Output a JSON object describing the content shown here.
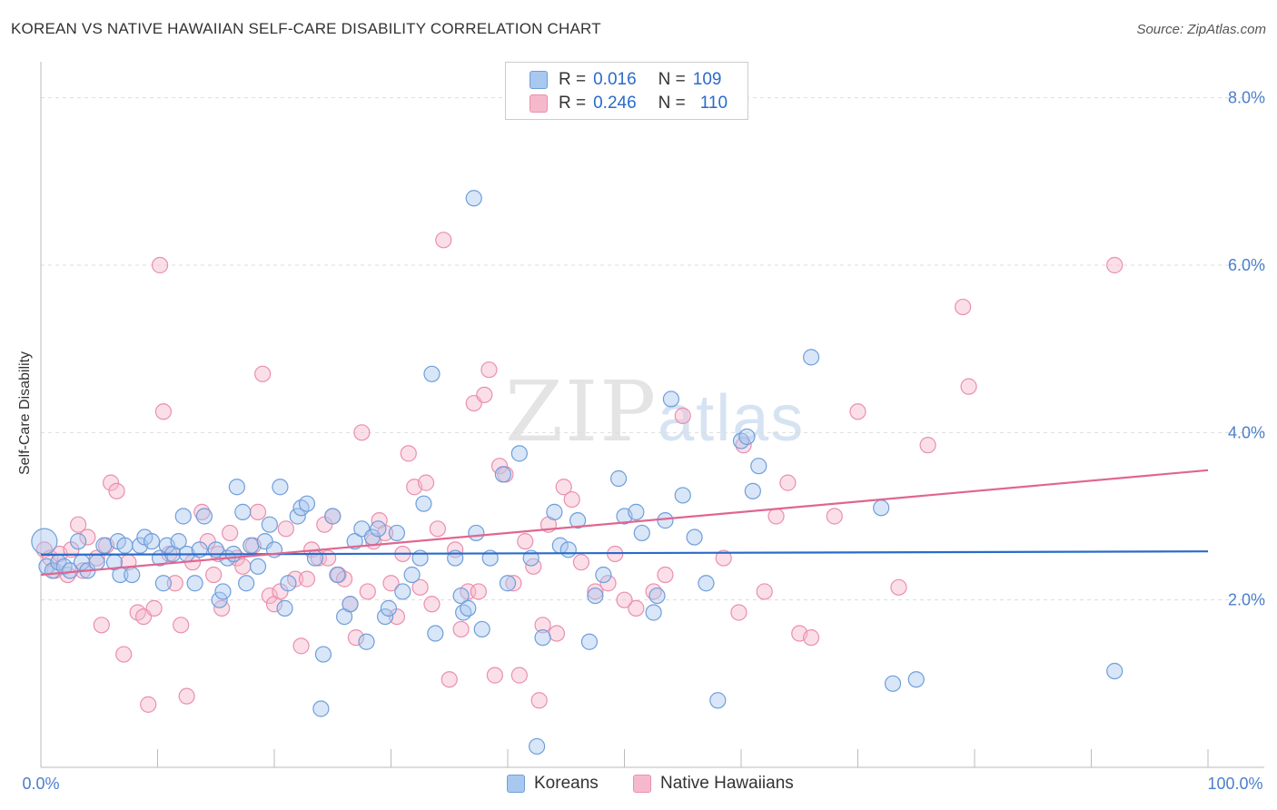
{
  "title": "KOREAN VS NATIVE HAWAIIAN SELF-CARE DISABILITY CORRELATION CHART",
  "source": "Source: ZipAtlas.com",
  "watermark": {
    "main": "ZIP",
    "sub": "atlas"
  },
  "legend": {
    "rows": [
      {
        "r_label": "R =",
        "r_value": "0.016",
        "n_label": "N =",
        "n_value": "109"
      },
      {
        "r_label": "R =",
        "r_value": "0.246",
        "n_label": "N =",
        "n_value": "110"
      }
    ]
  },
  "colors": {
    "blue_fill": "#a9c8f0",
    "blue_stroke": "#6f9edb",
    "blue_line": "#2a6bc9",
    "pink_fill": "#f6b9cc",
    "pink_stroke": "#ea8fae",
    "pink_line": "#e0668f",
    "axis_text": "#4a7fcc",
    "grid": "#dddddd"
  },
  "chart_data": {
    "type": "scatter",
    "title": "KOREAN VS NATIVE HAWAIIAN SELF-CARE DISABILITY CORRELATION CHART",
    "xlabel": "",
    "ylabel": "Self-Care Disability",
    "xlim": [
      0,
      100
    ],
    "ylim": [
      0,
      8.3
    ],
    "x_tick_labels": [
      "0.0%",
      "100.0%"
    ],
    "y_ticks": [
      2.0,
      4.0,
      6.0,
      8.0
    ],
    "y_tick_labels": [
      "2.0%",
      "4.0%",
      "6.0%",
      "8.0%"
    ],
    "grid": true,
    "legend_position": "bottom",
    "series": [
      {
        "name": "Koreans",
        "color": "#a9c8f0",
        "trend": {
          "x": [
            0,
            100
          ],
          "y": [
            2.54,
            2.58
          ]
        },
        "points": [
          [
            0.3,
            2.7
          ],
          [
            0.5,
            2.4
          ],
          [
            1,
            2.35
          ],
          [
            1.5,
            2.45
          ],
          [
            2,
            2.4
          ],
          [
            2.5,
            2.35
          ],
          [
            3.2,
            2.7
          ],
          [
            3.5,
            2.45
          ],
          [
            4,
            2.35
          ],
          [
            4.8,
            2.45
          ],
          [
            5.4,
            2.65
          ],
          [
            6.3,
            2.45
          ],
          [
            6.6,
            2.7
          ],
          [
            6.8,
            2.3
          ],
          [
            7.2,
            2.65
          ],
          [
            7.8,
            2.3
          ],
          [
            8.5,
            2.65
          ],
          [
            8.9,
            2.75
          ],
          [
            9.5,
            2.7
          ],
          [
            10.2,
            2.5
          ],
          [
            10.5,
            2.2
          ],
          [
            10.8,
            2.65
          ],
          [
            11.3,
            2.55
          ],
          [
            11.8,
            2.7
          ],
          [
            12.2,
            3.0
          ],
          [
            12.5,
            2.55
          ],
          [
            13.2,
            2.2
          ],
          [
            13.6,
            2.6
          ],
          [
            14,
            3.0
          ],
          [
            15,
            2.6
          ],
          [
            15.3,
            2.0
          ],
          [
            15.6,
            2.1
          ],
          [
            16,
            2.5
          ],
          [
            16.5,
            2.55
          ],
          [
            16.8,
            3.35
          ],
          [
            17.3,
            3.05
          ],
          [
            17.6,
            2.2
          ],
          [
            18,
            2.65
          ],
          [
            18.6,
            2.4
          ],
          [
            19.2,
            2.7
          ],
          [
            19.6,
            2.9
          ],
          [
            20,
            2.6
          ],
          [
            20.5,
            3.35
          ],
          [
            20.9,
            1.9
          ],
          [
            21.2,
            2.2
          ],
          [
            22,
            3.0
          ],
          [
            22.3,
            3.1
          ],
          [
            22.8,
            3.15
          ],
          [
            23.5,
            2.5
          ],
          [
            24,
            0.7
          ],
          [
            24.2,
            1.35
          ],
          [
            25,
            3.0
          ],
          [
            25.4,
            2.3
          ],
          [
            26,
            1.8
          ],
          [
            26.5,
            1.95
          ],
          [
            26.9,
            2.7
          ],
          [
            27.5,
            2.85
          ],
          [
            27.9,
            1.5
          ],
          [
            28.4,
            2.75
          ],
          [
            28.9,
            2.85
          ],
          [
            29.5,
            1.8
          ],
          [
            29.8,
            1.9
          ],
          [
            30.5,
            2.8
          ],
          [
            31,
            2.1
          ],
          [
            31.8,
            2.3
          ],
          [
            32.5,
            2.5
          ],
          [
            32.8,
            3.15
          ],
          [
            33.5,
            4.7
          ],
          [
            33.8,
            1.6
          ],
          [
            35.5,
            2.5
          ],
          [
            36,
            2.05
          ],
          [
            36.2,
            1.85
          ],
          [
            36.6,
            1.9
          ],
          [
            37.1,
            6.8
          ],
          [
            37.3,
            2.8
          ],
          [
            37.8,
            1.65
          ],
          [
            38.5,
            2.5
          ],
          [
            39.6,
            3.5
          ],
          [
            40,
            2.2
          ],
          [
            41,
            3.75
          ],
          [
            42,
            2.5
          ],
          [
            42.5,
            0.25
          ],
          [
            43,
            1.55
          ],
          [
            44,
            3.05
          ],
          [
            44.5,
            2.65
          ],
          [
            45.2,
            2.6
          ],
          [
            46,
            2.95
          ],
          [
            47,
            1.5
          ],
          [
            47.5,
            2.05
          ],
          [
            48.2,
            2.3
          ],
          [
            49.5,
            3.45
          ],
          [
            50,
            3.0
          ],
          [
            51,
            3.05
          ],
          [
            51.5,
            2.8
          ],
          [
            52.5,
            1.85
          ],
          [
            52.8,
            2.05
          ],
          [
            53.5,
            2.95
          ],
          [
            54,
            4.4
          ],
          [
            55,
            3.25
          ],
          [
            56,
            2.75
          ],
          [
            57,
            2.2
          ],
          [
            58,
            0.8
          ],
          [
            60,
            3.9
          ],
          [
            60.5,
            3.95
          ],
          [
            61,
            3.3
          ],
          [
            61.5,
            3.6
          ],
          [
            66,
            4.9
          ],
          [
            72,
            3.1
          ],
          [
            73,
            1.0
          ],
          [
            75,
            1.05
          ],
          [
            92,
            1.15
          ]
        ]
      },
      {
        "name": "Native Hawaiians",
        "color": "#f6b9cc",
        "trend": {
          "x": [
            0,
            100
          ],
          "y": [
            2.3,
            3.55
          ]
        },
        "points": [
          [
            0.3,
            2.6
          ],
          [
            0.8,
            2.5
          ],
          [
            1.2,
            2.35
          ],
          [
            1.6,
            2.55
          ],
          [
            2.3,
            2.3
          ],
          [
            2.6,
            2.6
          ],
          [
            3.2,
            2.9
          ],
          [
            3.6,
            2.35
          ],
          [
            4,
            2.75
          ],
          [
            4.8,
            2.5
          ],
          [
            5.2,
            1.7
          ],
          [
            5.6,
            2.65
          ],
          [
            6,
            3.4
          ],
          [
            6.5,
            3.3
          ],
          [
            7.1,
            1.35
          ],
          [
            7.5,
            2.45
          ],
          [
            8.3,
            1.85
          ],
          [
            8.8,
            1.8
          ],
          [
            9.2,
            0.75
          ],
          [
            9.7,
            1.9
          ],
          [
            10.2,
            6.0
          ],
          [
            10.5,
            4.25
          ],
          [
            11,
            2.55
          ],
          [
            11.5,
            2.2
          ],
          [
            12,
            1.7
          ],
          [
            12.5,
            0.85
          ],
          [
            13,
            2.45
          ],
          [
            13.8,
            3.05
          ],
          [
            14.3,
            2.7
          ],
          [
            14.8,
            2.3
          ],
          [
            15.2,
            2.55
          ],
          [
            15.5,
            1.9
          ],
          [
            16.2,
            2.8
          ],
          [
            16.8,
            2.5
          ],
          [
            17.3,
            2.4
          ],
          [
            18.2,
            2.65
          ],
          [
            18.6,
            3.05
          ],
          [
            19,
            4.7
          ],
          [
            19.6,
            2.05
          ],
          [
            20,
            1.95
          ],
          [
            20.5,
            2.1
          ],
          [
            21,
            2.85
          ],
          [
            21.8,
            2.25
          ],
          [
            22.3,
            1.45
          ],
          [
            22.8,
            2.25
          ],
          [
            23.2,
            2.6
          ],
          [
            23.8,
            2.5
          ],
          [
            24.3,
            2.9
          ],
          [
            24.6,
            2.5
          ],
          [
            25,
            3.0
          ],
          [
            25.5,
            2.3
          ],
          [
            26,
            2.25
          ],
          [
            26.5,
            1.95
          ],
          [
            27,
            1.55
          ],
          [
            27.5,
            4.0
          ],
          [
            28,
            2.1
          ],
          [
            28.5,
            2.7
          ],
          [
            29,
            2.95
          ],
          [
            29.5,
            2.8
          ],
          [
            30,
            2.2
          ],
          [
            30.5,
            1.8
          ],
          [
            31,
            2.55
          ],
          [
            31.5,
            3.75
          ],
          [
            32,
            3.35
          ],
          [
            32.5,
            2.15
          ],
          [
            33,
            3.4
          ],
          [
            33.5,
            1.95
          ],
          [
            34,
            2.85
          ],
          [
            34.5,
            6.3
          ],
          [
            35,
            1.05
          ],
          [
            35.5,
            2.6
          ],
          [
            36,
            1.65
          ],
          [
            36.6,
            2.1
          ],
          [
            37.1,
            4.35
          ],
          [
            37.5,
            2.1
          ],
          [
            38,
            4.45
          ],
          [
            38.4,
            4.75
          ],
          [
            38.9,
            1.1
          ],
          [
            39.3,
            3.6
          ],
          [
            39.8,
            3.5
          ],
          [
            40.5,
            2.2
          ],
          [
            41,
            1.1
          ],
          [
            41.5,
            2.7
          ],
          [
            42.2,
            2.4
          ],
          [
            42.7,
            0.8
          ],
          [
            43,
            1.7
          ],
          [
            43.5,
            2.9
          ],
          [
            44.2,
            1.6
          ],
          [
            44.8,
            3.35
          ],
          [
            45.5,
            3.2
          ],
          [
            46.3,
            2.45
          ],
          [
            47.5,
            2.1
          ],
          [
            48.6,
            2.2
          ],
          [
            49.2,
            2.55
          ],
          [
            50,
            2.0
          ],
          [
            51,
            1.9
          ],
          [
            52.5,
            2.1
          ],
          [
            53.5,
            2.3
          ],
          [
            55,
            4.2
          ],
          [
            58.5,
            2.5
          ],
          [
            59.8,
            1.85
          ],
          [
            60.2,
            3.85
          ],
          [
            62,
            2.1
          ],
          [
            63,
            3.0
          ],
          [
            64,
            3.4
          ],
          [
            65,
            1.6
          ],
          [
            66,
            1.55
          ],
          [
            68,
            3.0
          ],
          [
            70,
            4.25
          ],
          [
            73.5,
            2.15
          ],
          [
            76,
            3.85
          ],
          [
            79,
            5.5
          ],
          [
            79.5,
            4.55
          ],
          [
            92,
            6.0
          ]
        ]
      }
    ]
  }
}
